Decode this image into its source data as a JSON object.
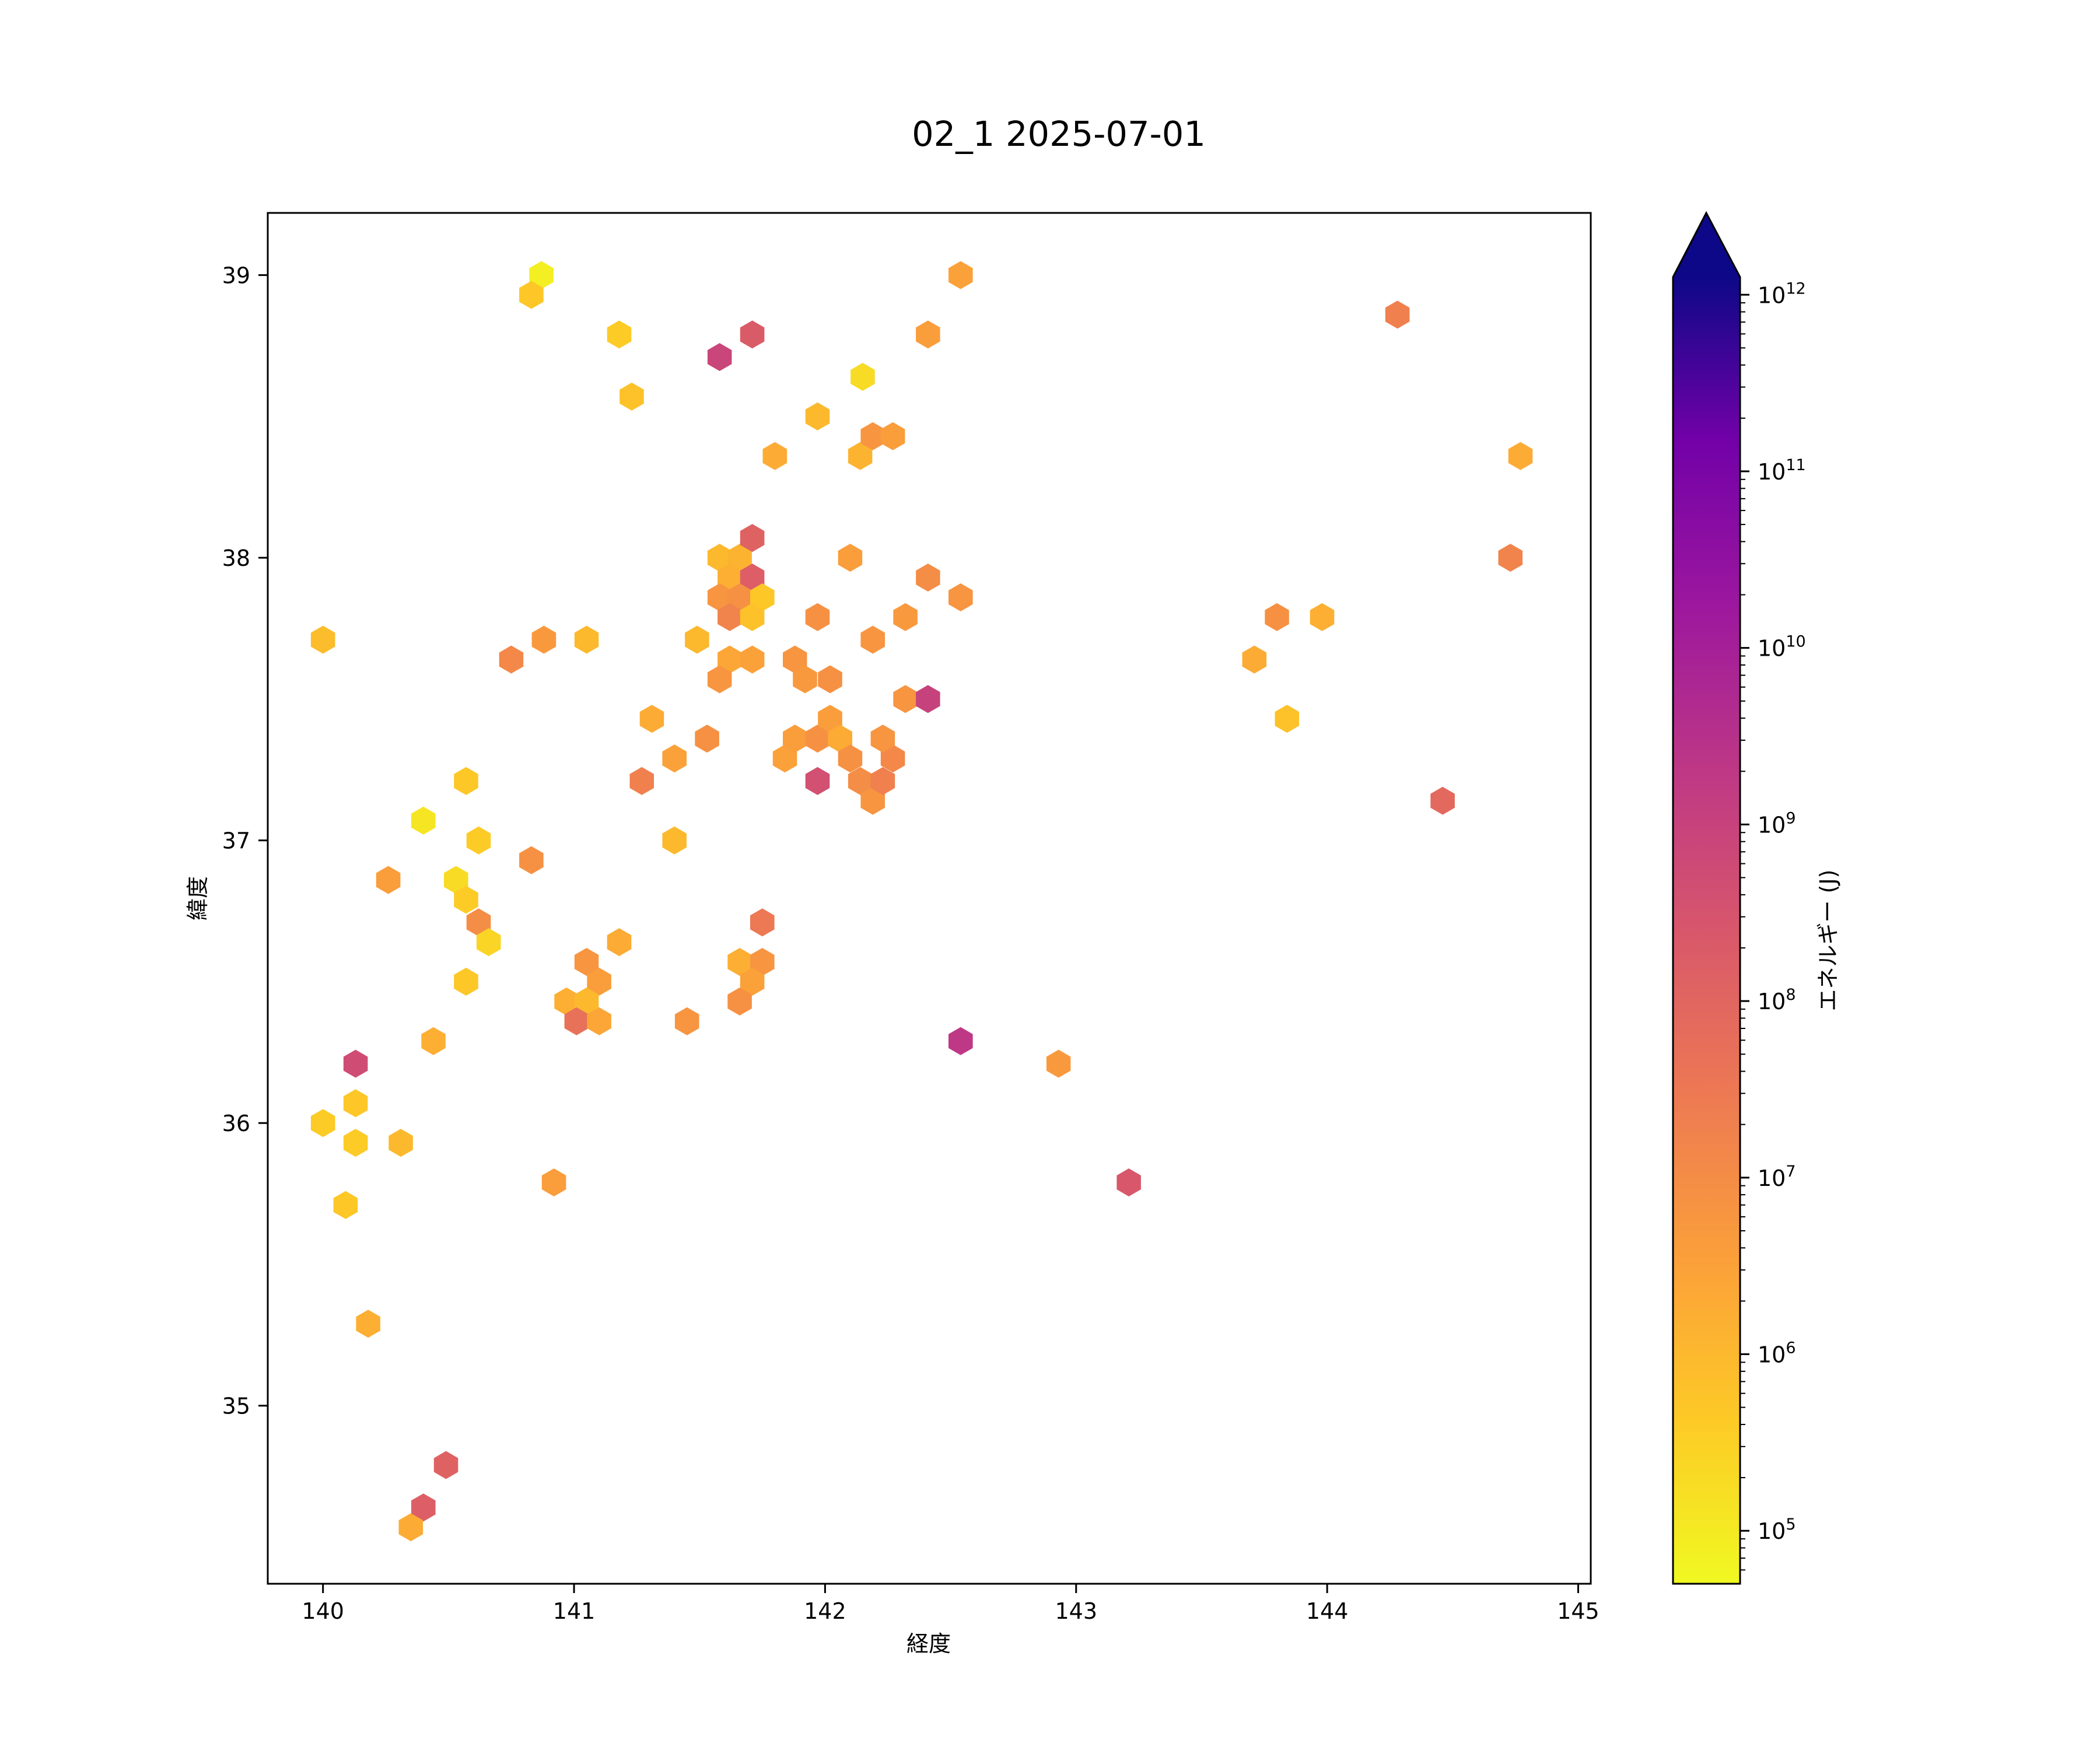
{
  "chart_data": {
    "type": "hexbin",
    "title": "02_1 2025-07-01",
    "xlabel": "経度",
    "ylabel": "緯度",
    "xlim": [
      139.78,
      145.05
    ],
    "ylim": [
      34.37,
      39.22
    ],
    "x_ticks": [
      {
        "value": 140,
        "label": "140"
      },
      {
        "value": 141,
        "label": "141"
      },
      {
        "value": 142,
        "label": "142"
      },
      {
        "value": 143,
        "label": "143"
      },
      {
        "value": 144,
        "label": "144"
      },
      {
        "value": 145,
        "label": "145"
      }
    ],
    "y_ticks": [
      {
        "value": 35,
        "label": "35"
      },
      {
        "value": 36,
        "label": "36"
      },
      {
        "value": 37,
        "label": "37"
      },
      {
        "value": 38,
        "label": "38"
      },
      {
        "value": 39,
        "label": "39"
      }
    ],
    "colorbar": {
      "label": "エネルギー (J)",
      "scale": "log",
      "colormap": "plasma_r",
      "extend": "max",
      "log_range": [
        4.7,
        12.1
      ],
      "ticks": [
        {
          "exp": 5,
          "base": "10",
          "sup": "5"
        },
        {
          "exp": 6,
          "base": "10",
          "sup": "6"
        },
        {
          "exp": 7,
          "base": "10",
          "sup": "7"
        },
        {
          "exp": 8,
          "base": "10",
          "sup": "8"
        },
        {
          "exp": 9,
          "base": "10",
          "sup": "9"
        },
        {
          "exp": 10,
          "base": "10",
          "sup": "10"
        },
        {
          "exp": 11,
          "base": "10",
          "sup": "11"
        },
        {
          "exp": 12,
          "base": "10",
          "sup": "12"
        }
      ]
    },
    "columns": [
      "lon",
      "lat",
      "log10_energy"
    ],
    "points": [
      [
        140.87,
        39.0,
        4.9
      ],
      [
        140.83,
        38.93,
        5.7
      ],
      [
        141.18,
        38.79,
        5.6
      ],
      [
        141.23,
        38.57,
        5.8
      ],
      [
        141.58,
        38.71,
        8.9
      ],
      [
        141.71,
        38.79,
        8.3
      ],
      [
        142.15,
        38.64,
        5.3
      ],
      [
        141.97,
        38.5,
        6.0
      ],
      [
        141.8,
        38.36,
        6.3
      ],
      [
        142.14,
        38.36,
        6.1
      ],
      [
        142.19,
        38.43,
        6.8
      ],
      [
        142.27,
        38.43,
        6.6
      ],
      [
        142.41,
        38.79,
        6.6
      ],
      [
        142.54,
        39.0,
        6.5
      ],
      [
        141.58,
        38.0,
        6.0
      ],
      [
        141.66,
        38.0,
        6.1
      ],
      [
        141.62,
        37.93,
        6.2
      ],
      [
        141.71,
        37.93,
        8.2
      ],
      [
        141.71,
        38.07,
        8.1
      ],
      [
        141.58,
        37.86,
        6.8
      ],
      [
        141.66,
        37.86,
        6.9
      ],
      [
        141.75,
        37.86,
        5.7
      ],
      [
        141.62,
        37.79,
        7.2
      ],
      [
        141.71,
        37.79,
        5.8
      ],
      [
        142.1,
        38.0,
        6.6
      ],
      [
        142.41,
        37.93,
        7.0
      ],
      [
        142.54,
        37.86,
        6.8
      ],
      [
        141.97,
        37.79,
        6.9
      ],
      [
        142.19,
        37.71,
        6.8
      ],
      [
        142.32,
        37.79,
        6.7
      ],
      [
        141.49,
        37.71,
        6.0
      ],
      [
        141.62,
        37.64,
        6.4
      ],
      [
        141.71,
        37.64,
        6.5
      ],
      [
        141.58,
        37.57,
        6.8
      ],
      [
        141.88,
        37.64,
        6.8
      ],
      [
        141.92,
        37.57,
        6.7
      ],
      [
        142.02,
        37.57,
        6.9
      ],
      [
        141.31,
        37.43,
        6.3
      ],
      [
        141.4,
        37.29,
        6.5
      ],
      [
        141.53,
        37.36,
        6.9
      ],
      [
        141.27,
        37.21,
        7.3
      ],
      [
        141.84,
        37.29,
        6.5
      ],
      [
        141.88,
        37.36,
        6.6
      ],
      [
        141.97,
        37.36,
        6.9
      ],
      [
        142.02,
        37.43,
        6.6
      ],
      [
        142.06,
        37.36,
        6.3
      ],
      [
        142.1,
        37.29,
        6.9
      ],
      [
        142.14,
        37.21,
        7.0
      ],
      [
        142.19,
        37.14,
        6.8
      ],
      [
        142.23,
        37.21,
        7.3
      ],
      [
        142.27,
        37.29,
        7.1
      ],
      [
        142.23,
        37.36,
        6.8
      ],
      [
        141.97,
        37.21,
        8.6
      ],
      [
        142.32,
        37.5,
        6.8
      ],
      [
        142.41,
        37.5,
        9.0
      ],
      [
        140.0,
        37.71,
        5.9
      ],
      [
        140.75,
        37.64,
        7.1
      ],
      [
        140.88,
        37.71,
        6.7
      ],
      [
        141.05,
        37.71,
        6.0
      ],
      [
        140.4,
        37.07,
        5.1
      ],
      [
        140.57,
        37.21,
        5.7
      ],
      [
        140.62,
        37.0,
        5.6
      ],
      [
        140.26,
        36.86,
        6.6
      ],
      [
        140.53,
        36.86,
        5.3
      ],
      [
        140.57,
        36.79,
        5.6
      ],
      [
        140.62,
        36.71,
        7.0
      ],
      [
        140.66,
        36.64,
        5.4
      ],
      [
        140.83,
        36.93,
        6.9
      ],
      [
        141.4,
        37.0,
        6.0
      ],
      [
        140.57,
        36.5,
        5.7
      ],
      [
        140.44,
        36.29,
        6.2
      ],
      [
        141.05,
        36.57,
        6.8
      ],
      [
        141.1,
        36.5,
        6.6
      ],
      [
        140.97,
        36.43,
        6.2
      ],
      [
        141.05,
        36.43,
        6.0
      ],
      [
        141.01,
        36.36,
        7.7
      ],
      [
        141.1,
        36.36,
        6.4
      ],
      [
        141.18,
        36.64,
        6.3
      ],
      [
        141.45,
        36.36,
        6.8
      ],
      [
        141.66,
        36.57,
        6.2
      ],
      [
        141.75,
        36.57,
        6.8
      ],
      [
        141.71,
        36.5,
        6.5
      ],
      [
        141.66,
        36.43,
        6.9
      ],
      [
        141.75,
        36.71,
        7.5
      ],
      [
        142.54,
        36.29,
        9.3
      ],
      [
        140.13,
        36.21,
        8.7
      ],
      [
        140.13,
        36.07,
        5.7
      ],
      [
        140.0,
        36.0,
        5.6
      ],
      [
        140.13,
        35.93,
        5.6
      ],
      [
        140.31,
        35.93,
        6.0
      ],
      [
        140.09,
        35.71,
        5.7
      ],
      [
        140.92,
        35.79,
        6.6
      ],
      [
        140.18,
        35.29,
        6.2
      ],
      [
        140.49,
        34.79,
        8.1
      ],
      [
        140.4,
        34.64,
        8.2
      ],
      [
        140.35,
        34.57,
        6.3
      ],
      [
        142.93,
        36.21,
        6.7
      ],
      [
        143.21,
        35.79,
        8.4
      ],
      [
        143.71,
        37.64,
        6.3
      ],
      [
        143.8,
        37.79,
        6.9
      ],
      [
        143.98,
        37.79,
        6.2
      ],
      [
        143.84,
        37.43,
        5.8
      ],
      [
        144.28,
        38.86,
        7.3
      ],
      [
        144.46,
        37.14,
        7.9
      ],
      [
        144.73,
        38.0,
        7.2
      ],
      [
        144.77,
        38.36,
        6.3
      ]
    ]
  }
}
